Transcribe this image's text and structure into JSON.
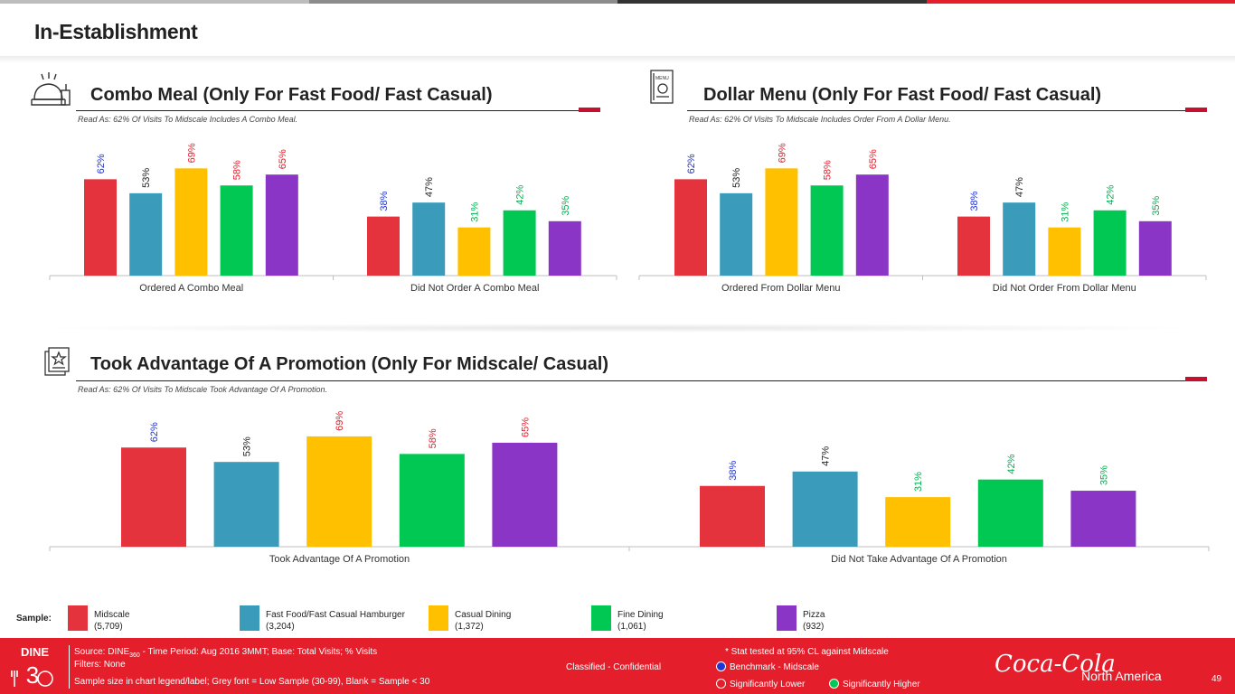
{
  "page": {
    "title": "In-Establishment",
    "topbar_colors": [
      "#bdbdbd",
      "#8c8c8c",
      "#333333",
      "#e41e2b"
    ]
  },
  "series_colors": {
    "Midscale": "#e5333e",
    "Fast Food/Fast Casual Hamburger": "#3a9cba",
    "Casual Dining": "#ffc000",
    "Fine Dining": "#00c853",
    "Pizza": "#8b35c6"
  },
  "label_colors": {
    "Midscale": "#1f35d6",
    "Fast Food/Fast Casual Hamburger": "#222222",
    "Casual Dining": "#e41e2b",
    "Fine Dining": "#e41e2b",
    "Pizza": "#e41e2b"
  },
  "label_colors_group2": {
    "Midscale": "#1f35d6",
    "Fast Food/Fast Casual Hamburger": "#222222",
    "Casual Dining": "#00b050",
    "Fine Dining": "#00b050",
    "Pizza": "#00b050"
  },
  "sections": [
    {
      "title": "Combo Meal (Only For Fast Food/ Fast Casual)",
      "read_as": "Read As: 62% Of Visits To Midscale Includes A Combo Meal.",
      "icon": "dining-cloche-icon"
    },
    {
      "title": "Dollar Menu (Only For Fast Food/ Fast Casual)",
      "read_as": "Read As: 62% Of Visits To Midscale Includes Order From A Dollar Menu.",
      "icon": "menu-card-icon"
    },
    {
      "title": "Took Advantage Of A Promotion (Only For Midscale/ Casual)",
      "read_as": "Read As: 62% Of Visits To Midscale Took Advantage Of A Promotion.",
      "icon": "promotion-icon"
    }
  ],
  "chart_data": [
    {
      "type": "bar",
      "title": "Combo Meal (Only For Fast Food/ Fast Casual)",
      "categories": [
        "Ordered A Combo Meal",
        "Did Not Order A Combo Meal"
      ],
      "series": [
        {
          "name": "Midscale",
          "values": [
            62,
            38
          ]
        },
        {
          "name": "Fast Food/Fast Casual Hamburger",
          "values": [
            53,
            47
          ]
        },
        {
          "name": "Casual Dining",
          "values": [
            69,
            31
          ]
        },
        {
          "name": "Fine Dining",
          "values": [
            58,
            42
          ]
        },
        {
          "name": "Pizza",
          "values": [
            65,
            35
          ]
        }
      ],
      "value_suffix": "%",
      "ylim": [
        0,
        75
      ]
    },
    {
      "type": "bar",
      "title": "Dollar Menu (Only For Fast Food/ Fast Casual)",
      "categories": [
        "Ordered From Dollar Menu",
        "Did Not Order From Dollar Menu"
      ],
      "series": [
        {
          "name": "Midscale",
          "values": [
            62,
            38
          ]
        },
        {
          "name": "Fast Food/Fast Casual Hamburger",
          "values": [
            53,
            47
          ]
        },
        {
          "name": "Casual Dining",
          "values": [
            69,
            31
          ]
        },
        {
          "name": "Fine Dining",
          "values": [
            58,
            42
          ]
        },
        {
          "name": "Pizza",
          "values": [
            65,
            35
          ]
        }
      ],
      "value_suffix": "%",
      "ylim": [
        0,
        75
      ]
    },
    {
      "type": "bar",
      "title": "Took Advantage Of A Promotion (Only For Midscale/ Casual)",
      "categories": [
        "Took Advantage Of A Promotion",
        "Did Not Take Advantage Of A Promotion"
      ],
      "series": [
        {
          "name": "Midscale",
          "values": [
            62,
            38
          ]
        },
        {
          "name": "Fast Food/Fast Casual Hamburger",
          "values": [
            53,
            47
          ]
        },
        {
          "name": "Casual Dining",
          "values": [
            69,
            31
          ]
        },
        {
          "name": "Fine Dining",
          "values": [
            58,
            42
          ]
        },
        {
          "name": "Pizza",
          "values": [
            65,
            35
          ]
        }
      ],
      "value_suffix": "%",
      "ylim": [
        0,
        75
      ]
    }
  ],
  "legend": {
    "label": "Sample:",
    "items": [
      {
        "name": "Midscale",
        "size": "(5,709)",
        "color": "#e5333e"
      },
      {
        "name": "Fast Food/Fast Casual Hamburger",
        "size": "(3,204)",
        "color": "#3a9cba"
      },
      {
        "name": "Casual Dining",
        "size": "(1,372)",
        "color": "#ffc000"
      },
      {
        "name": "Fine Dining",
        "size": "(1,061)",
        "color": "#00c853"
      },
      {
        "name": "Pizza",
        "size": "(932)",
        "color": "#8b35c6"
      }
    ]
  },
  "footer": {
    "logo_text": "DINE",
    "logo_number": "360",
    "source_prefix": "Source: DINE",
    "source_sub": "360",
    "source_rest": " - Time Period: Aug 2016 3MMT; Base: Total Visits; % Visits",
    "filters": "Filters: None",
    "sample_note": "Sample size in chart legend/label;  Grey font = Low Sample (30-99), Blank = Sample < 30",
    "classification": "Classified - Confidential",
    "stat_note": "* Stat tested at 95% CL against Midscale",
    "benchmark": "Benchmark - Midscale",
    "sig_lower": "Significantly Lower",
    "sig_higher": "Significantly Higher",
    "brand": "Coca-Cola",
    "region": "North America",
    "page_number": "49"
  }
}
